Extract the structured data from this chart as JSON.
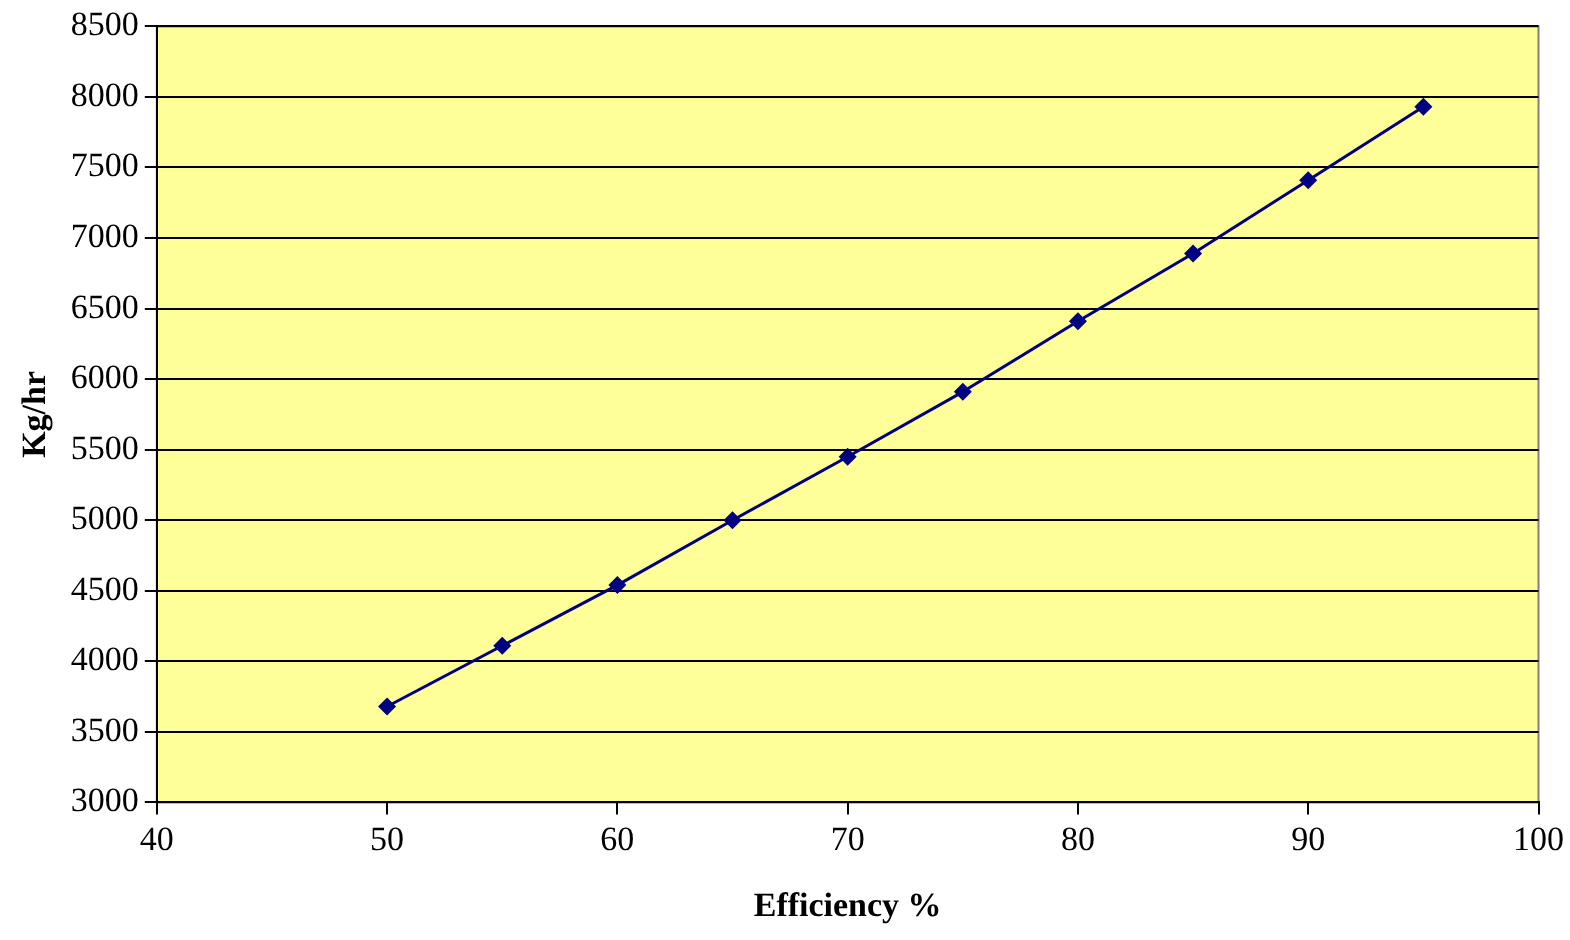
{
  "chart_data": {
    "type": "line",
    "xlabel": "Efficiency %",
    "ylabel": "Kg/hr",
    "x": [
      50,
      55,
      60,
      65,
      70,
      75,
      80,
      85,
      90,
      95
    ],
    "series": [
      {
        "color": "#000080",
        "values": [
          3680,
          4110,
          4540,
          5000,
          5450,
          5910,
          6410,
          6890,
          7410,
          7930
        ]
      }
    ],
    "xlim": [
      40,
      100
    ],
    "xticks": [
      40,
      50,
      60,
      70,
      80,
      90,
      100
    ],
    "ylim": [
      3000,
      8500
    ],
    "yticks": [
      3000,
      3500,
      4000,
      4500,
      5000,
      5500,
      6000,
      6500,
      7000,
      7500,
      8000,
      8500
    ],
    "grid": "y",
    "legend": false,
    "marker": "diamond",
    "line_style": "solid"
  }
}
